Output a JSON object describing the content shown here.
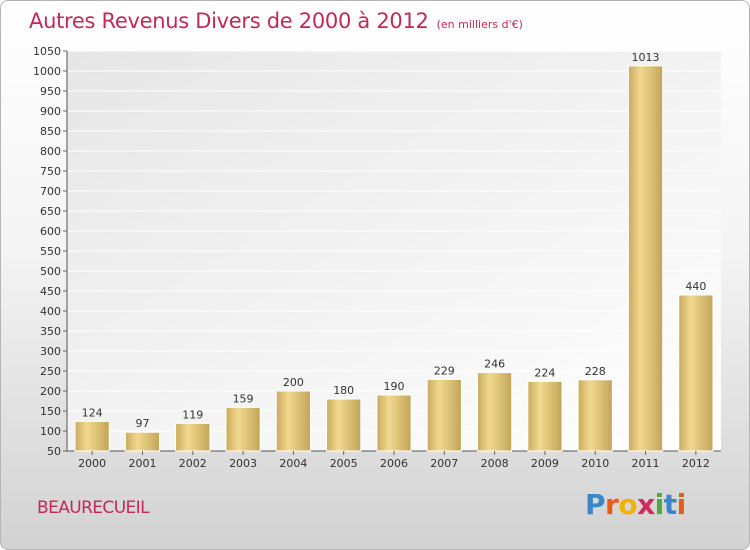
{
  "header": {
    "title": "Autres Revenus Divers de 2000 à 2012",
    "subtitle": "(en milliers d'€)"
  },
  "footer": {
    "commune": "BEAURECUEIL",
    "logo_letters": [
      "P",
      "r",
      "o",
      "x",
      "i",
      "t",
      "i"
    ],
    "logo_colors": [
      "#3a86c8",
      "#e8591a",
      "#f2b300",
      "#d12a5c",
      "#52a83a",
      "#3a86c8",
      "#e8591a"
    ]
  },
  "chart_data": {
    "type": "bar",
    "title": "Autres Revenus Divers de 2000 à 2012",
    "subtitle": "(en milliers d'€)",
    "categories": [
      "2000",
      "2001",
      "2002",
      "2003",
      "2004",
      "2005",
      "2006",
      "2007",
      "2008",
      "2009",
      "2010",
      "2011",
      "2012"
    ],
    "values": [
      124,
      97,
      119,
      159,
      200,
      180,
      190,
      229,
      246,
      224,
      228,
      1013,
      440
    ],
    "ylim": [
      50,
      1050
    ],
    "yticks": [
      50,
      100,
      150,
      200,
      250,
      300,
      350,
      400,
      450,
      500,
      550,
      600,
      650,
      700,
      750,
      800,
      850,
      900,
      950,
      1000,
      1050
    ],
    "grid": true,
    "bar_color": "#e3c77a"
  }
}
